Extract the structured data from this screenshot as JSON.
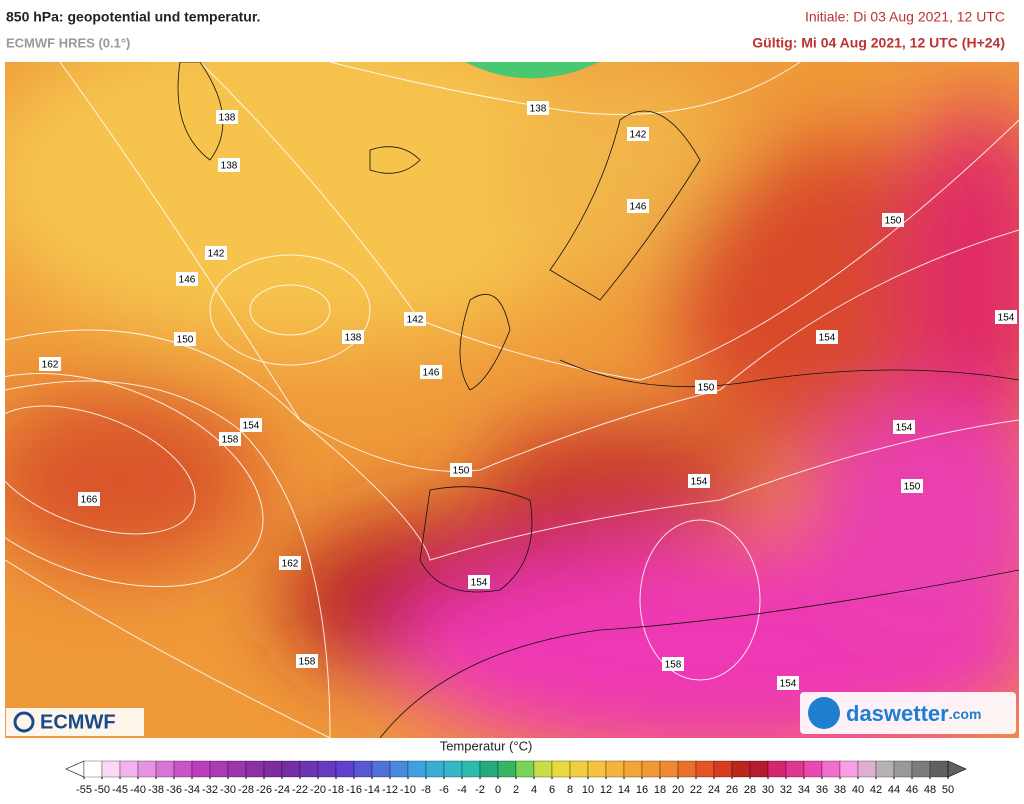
{
  "header": {
    "title": "850 hPa: geopotential und temperatur.",
    "subtitle": "ECMWF HRES (0.1°)",
    "init": "Initiale: Di 03 Aug 2021, 12 UTC",
    "valid": "Gültig: Mi 04 Aug 2021, 12 UTC (H+24)"
  },
  "map": {
    "contour_labels": [
      138,
      138,
      138,
      138,
      142,
      142,
      142,
      146,
      146,
      146,
      150,
      150,
      150,
      150,
      150,
      154,
      154,
      154,
      154,
      154,
      154,
      154,
      158,
      158,
      158,
      162,
      162,
      166
    ]
  },
  "logos": {
    "left": "ECMWF",
    "right": "daswetter",
    "right_suffix": ".com"
  },
  "colorbar": {
    "title": "Temperatur (°C)",
    "ticks": [
      -55,
      -50,
      -45,
      -40,
      -38,
      -36,
      -34,
      -32,
      -30,
      -28,
      -26,
      -24,
      -22,
      -20,
      -18,
      -16,
      -14,
      -12,
      -10,
      -8,
      -6,
      -4,
      -2,
      0,
      2,
      4,
      6,
      8,
      10,
      12,
      14,
      16,
      18,
      20,
      22,
      24,
      26,
      28,
      30,
      32,
      34,
      36,
      38,
      40,
      42,
      44,
      46,
      48,
      50
    ]
  }
}
